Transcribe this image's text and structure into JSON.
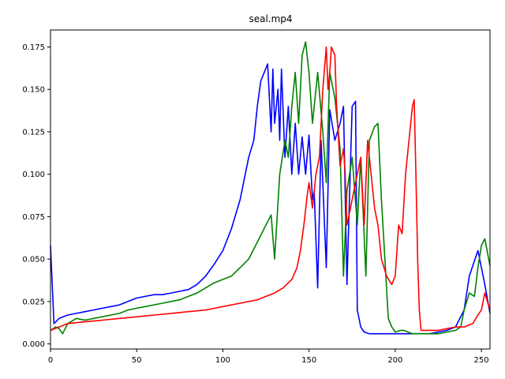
{
  "chart_data": {
    "type": "line",
    "title": "seal.mp4",
    "xlabel": "",
    "ylabel": "",
    "xlim": [
      0,
      255
    ],
    "ylim": [
      -0.003,
      0.185
    ],
    "x_ticks": [
      0,
      50,
      100,
      150,
      200,
      250
    ],
    "x_tick_labels": [
      "0",
      "50",
      "100",
      "150",
      "200",
      "250"
    ],
    "y_ticks": [
      0.0,
      0.025,
      0.05,
      0.075,
      0.1,
      0.125,
      0.15,
      0.175
    ],
    "y_tick_labels": [
      "0.000",
      "0.025",
      "0.050",
      "0.075",
      "0.100",
      "0.125",
      "0.150",
      "0.175"
    ],
    "grid": false,
    "legend": "none",
    "series": [
      {
        "color": "#0000ff",
        "x": [
          0,
          2,
          5,
          10,
          15,
          20,
          25,
          30,
          35,
          40,
          45,
          50,
          55,
          60,
          65,
          70,
          75,
          80,
          85,
          90,
          95,
          100,
          105,
          110,
          113,
          115,
          118,
          120,
          122,
          124,
          126,
          128,
          129,
          130,
          132,
          133,
          134,
          136,
          138,
          140,
          142,
          144,
          146,
          148,
          150,
          152,
          153,
          155,
          157,
          160,
          162,
          165,
          168,
          170,
          172,
          175,
          177,
          178,
          180,
          182,
          185,
          190,
          195,
          200,
          205,
          210,
          215,
          220,
          225,
          230,
          235,
          240,
          243,
          246,
          248,
          250,
          252,
          255
        ],
        "y": [
          0.058,
          0.012,
          0.015,
          0.017,
          0.018,
          0.019,
          0.02,
          0.021,
          0.022,
          0.023,
          0.025,
          0.027,
          0.028,
          0.029,
          0.029,
          0.03,
          0.031,
          0.032,
          0.035,
          0.04,
          0.047,
          0.055,
          0.068,
          0.085,
          0.1,
          0.11,
          0.12,
          0.14,
          0.155,
          0.16,
          0.165,
          0.125,
          0.162,
          0.13,
          0.15,
          0.12,
          0.162,
          0.11,
          0.14,
          0.1,
          0.13,
          0.1,
          0.122,
          0.1,
          0.123,
          0.085,
          0.09,
          0.033,
          0.12,
          0.045,
          0.138,
          0.12,
          0.13,
          0.14,
          0.035,
          0.14,
          0.143,
          0.02,
          0.01,
          0.007,
          0.006,
          0.006,
          0.006,
          0.006,
          0.006,
          0.006,
          0.006,
          0.006,
          0.007,
          0.008,
          0.01,
          0.02,
          0.04,
          0.049,
          0.055,
          0.045,
          0.035,
          0.018
        ]
      },
      {
        "color": "#008000",
        "x": [
          0,
          3,
          5,
          7,
          10,
          15,
          20,
          25,
          30,
          35,
          40,
          45,
          50,
          55,
          60,
          65,
          70,
          75,
          80,
          85,
          90,
          95,
          100,
          105,
          110,
          115,
          120,
          125,
          128,
          130,
          133,
          136,
          138,
          140,
          142,
          144,
          146,
          148,
          150,
          152,
          155,
          158,
          160,
          162,
          165,
          168,
          170,
          172,
          175,
          178,
          180,
          183,
          185,
          188,
          190,
          192,
          194,
          196,
          198,
          200,
          203,
          205,
          210,
          215,
          220,
          225,
          230,
          235,
          238,
          240,
          243,
          246,
          248,
          250,
          252,
          255
        ],
        "y": [
          0.008,
          0.01,
          0.009,
          0.006,
          0.012,
          0.015,
          0.014,
          0.015,
          0.016,
          0.017,
          0.018,
          0.02,
          0.021,
          0.022,
          0.023,
          0.024,
          0.025,
          0.026,
          0.028,
          0.03,
          0.033,
          0.036,
          0.038,
          0.04,
          0.045,
          0.05,
          0.06,
          0.07,
          0.076,
          0.05,
          0.1,
          0.12,
          0.11,
          0.14,
          0.16,
          0.13,
          0.17,
          0.178,
          0.16,
          0.13,
          0.16,
          0.125,
          0.095,
          0.16,
          0.145,
          0.115,
          0.04,
          0.09,
          0.11,
          0.07,
          0.11,
          0.04,
          0.12,
          0.128,
          0.13,
          0.085,
          0.05,
          0.015,
          0.01,
          0.007,
          0.008,
          0.008,
          0.006,
          0.006,
          0.006,
          0.006,
          0.007,
          0.008,
          0.01,
          0.02,
          0.03,
          0.028,
          0.045,
          0.058,
          0.062,
          0.046
        ]
      },
      {
        "color": "#ff0000",
        "x": [
          0,
          5,
          10,
          20,
          30,
          40,
          50,
          60,
          70,
          80,
          90,
          100,
          110,
          120,
          125,
          130,
          135,
          140,
          143,
          145,
          147,
          149,
          150,
          152,
          154,
          156,
          158,
          160,
          161,
          162,
          163,
          165,
          166,
          168,
          170,
          171,
          172,
          174,
          176,
          178,
          180,
          182,
          184,
          186,
          188,
          190,
          192,
          195,
          198,
          200,
          202,
          204,
          206,
          208,
          210,
          211,
          212,
          213,
          214,
          215,
          218,
          220,
          225,
          230,
          235,
          240,
          245,
          248,
          250,
          252,
          255
        ],
        "y": [
          0.008,
          0.01,
          0.012,
          0.013,
          0.014,
          0.015,
          0.016,
          0.017,
          0.018,
          0.019,
          0.02,
          0.022,
          0.024,
          0.026,
          0.028,
          0.03,
          0.033,
          0.038,
          0.045,
          0.055,
          0.07,
          0.088,
          0.095,
          0.08,
          0.1,
          0.11,
          0.15,
          0.175,
          0.15,
          0.16,
          0.175,
          0.17,
          0.14,
          0.105,
          0.115,
          0.1,
          0.07,
          0.08,
          0.09,
          0.1,
          0.11,
          0.07,
          0.12,
          0.1,
          0.08,
          0.07,
          0.05,
          0.04,
          0.035,
          0.04,
          0.07,
          0.065,
          0.1,
          0.12,
          0.14,
          0.144,
          0.1,
          0.05,
          0.02,
          0.008,
          0.008,
          0.008,
          0.008,
          0.009,
          0.01,
          0.01,
          0.012,
          0.017,
          0.02,
          0.03,
          0.02
        ]
      }
    ]
  }
}
